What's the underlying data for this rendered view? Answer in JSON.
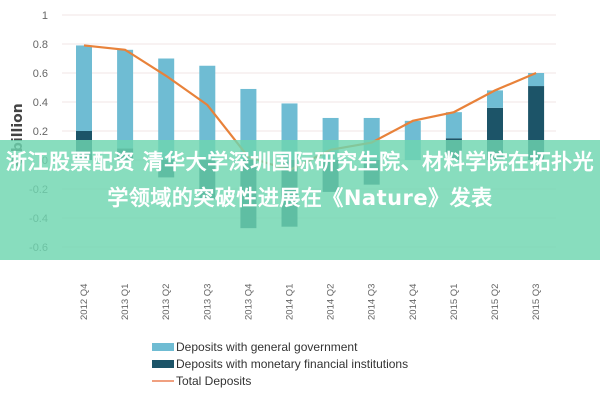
{
  "chart_data": {
    "type": "bar",
    "subtype": "stacked bar with line overlay",
    "title": "",
    "xlabel": "",
    "ylabel": "€ billion",
    "ylim": [
      -0.6,
      1
    ],
    "yticks": [
      "1",
      "0.8",
      "0.6",
      "0.4",
      "0.2",
      "0",
      "-0.2",
      "-0.4",
      "-0.6"
    ],
    "grid": true,
    "legend_position": "bottom",
    "categories": [
      "2012 Q4",
      "2013 Q1",
      "2013 Q2",
      "2013 Q3",
      "2013 Q4",
      "2014 Q1",
      "2014 Q2",
      "2014 Q3",
      "2014 Q4",
      "2015 Q1",
      "2015 Q2",
      "2015 Q3"
    ],
    "series": [
      {
        "name": "Deposits with general government",
        "type": "bar",
        "color": "#6fbcd3",
        "values": [
          0.59,
          0.68,
          0.7,
          0.65,
          0.49,
          0.39,
          0.29,
          0.29,
          0.27,
          0.18,
          0.12,
          0.09
        ]
      },
      {
        "name": "Deposits with monetary financial institutions",
        "type": "bar",
        "color": "#1c5468",
        "values": [
          0.2,
          0.08,
          -0.12,
          -0.27,
          -0.47,
          -0.46,
          -0.22,
          -0.17,
          0.0,
          0.15,
          0.36,
          0.51
        ]
      },
      {
        "name": "Total Deposits",
        "type": "line",
        "color": "#e8823a",
        "values": [
          0.79,
          0.76,
          0.58,
          0.38,
          0.02,
          -0.07,
          0.07,
          0.12,
          0.27,
          0.33,
          0.48,
          0.6
        ]
      }
    ]
  },
  "axis": {
    "ylabel": "€ billion",
    "yticks": [
      "1",
      "0.8",
      "0.6",
      "0.4",
      "0.2",
      "0",
      "-0.2",
      "-0.4",
      "-0.6"
    ],
    "xticks": [
      "2012 Q4",
      "2013 Q1",
      "2013 Q2",
      "2013 Q3",
      "2013 Q4",
      "2014 Q1",
      "2014 Q2",
      "2014 Q3",
      "2014 Q4",
      "2015 Q1",
      "2015 Q2",
      "2015 Q3"
    ]
  },
  "legend": {
    "items": [
      {
        "label": "Deposits with general government",
        "color": "#6fbcd3"
      },
      {
        "label": "Deposits with monetary financial institutions",
        "color": "#1c5468"
      },
      {
        "label": "Total Deposits",
        "color": "#f0a080"
      }
    ]
  },
  "overlay": {
    "caption": "浙江股票配资 清华大学深圳国际研究生院、材料学院在拓扑光学领域的突破性进展在《Nature》发表",
    "trailing_fragment": "发表",
    "color": "#6ed6b0"
  }
}
